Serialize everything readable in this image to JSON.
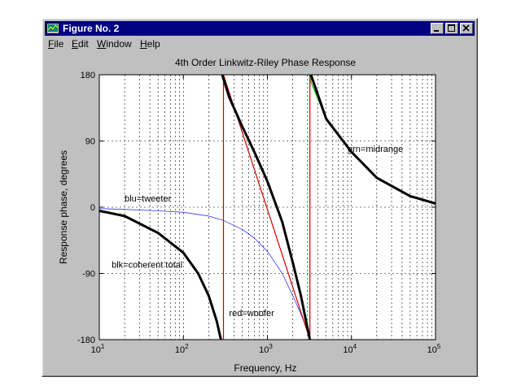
{
  "window": {
    "title": "Figure No. 2",
    "buttons": {
      "minimize": "minimize",
      "maximize": "maximize",
      "close": "close"
    }
  },
  "menu": [
    {
      "label": "File",
      "hot": "F",
      "rest": "ile"
    },
    {
      "label": "Edit",
      "hot": "E",
      "rest": "dit"
    },
    {
      "label": "Window",
      "hot": "W",
      "rest": "indow"
    },
    {
      "label": "Help",
      "hot": "H",
      "rest": "elp"
    }
  ],
  "chart_data": {
    "type": "line",
    "title": "4th Order Linkwitz-Riley Phase Response",
    "xlabel": "Frequency, Hz",
    "ylabel": "Response phase, degrees",
    "xscale": "log",
    "xlim": [
      10,
      100000
    ],
    "ylim": [
      -180,
      180
    ],
    "yticks": [
      180,
      90,
      0,
      -90,
      -180
    ],
    "xticks": [
      {
        "base": "10",
        "exp": "1"
      },
      {
        "base": "10",
        "exp": "2"
      },
      {
        "base": "10",
        "exp": "3"
      },
      {
        "base": "10",
        "exp": "4"
      },
      {
        "base": "10",
        "exp": "5"
      }
    ],
    "grid": true,
    "annotations": [
      {
        "text": "blu=tweeter",
        "x": 20,
        "y": 8
      },
      {
        "text": "blk=coherent total",
        "x": 14,
        "y": -82
      },
      {
        "text": "red=woofer",
        "x": 350,
        "y": -148
      },
      {
        "text": "grn=midrange",
        "x": 9000,
        "y": 75
      }
    ],
    "series": [
      {
        "name": "tweeter",
        "color": "#3333ff",
        "width": 0.8,
        "x": [
          10,
          20,
          50,
          100,
          200,
          300,
          500,
          700,
          1000,
          1500,
          2000,
          2500,
          3000,
          3200
        ],
        "y": [
          -2,
          -3,
          -5,
          -7,
          -12,
          -18,
          -30,
          -42,
          -60,
          -90,
          -120,
          -145,
          -168,
          -180
        ]
      },
      {
        "name": "woofer",
        "color": "#cc0000",
        "width": 1.2,
        "x": [
          300,
          300,
          3200,
          3200
        ],
        "y": [
          -180,
          180,
          -180,
          180
        ]
      },
      {
        "name": "midrange",
        "color": "#00cc00",
        "width": 1.2,
        "x": [
          3300,
          3300,
          5000,
          10000,
          20000,
          50000,
          100000
        ],
        "y": [
          180,
          170,
          120,
          75,
          40,
          15,
          5
        ]
      },
      {
        "name": "coherent total",
        "color": "#000000",
        "width": 3,
        "segments": [
          {
            "x": [
              10,
              20,
              50,
              100,
              150,
              200,
              250,
              280
            ],
            "y": [
              -5,
              -12,
              -35,
              -62,
              -90,
              -120,
              -155,
              -180
            ]
          },
          {
            "x": [
              290,
              350,
              500,
              700,
              1000,
              1500,
              2000,
              2500,
              3000,
              3200
            ],
            "y": [
              180,
              150,
              110,
              75,
              35,
              -20,
              -75,
              -120,
              -165,
              -180
            ]
          },
          {
            "x": [
              3300,
              5000,
              10000,
              20000,
              50000,
              100000
            ],
            "y": [
              180,
              120,
              75,
              40,
              15,
              5
            ]
          }
        ]
      }
    ]
  }
}
